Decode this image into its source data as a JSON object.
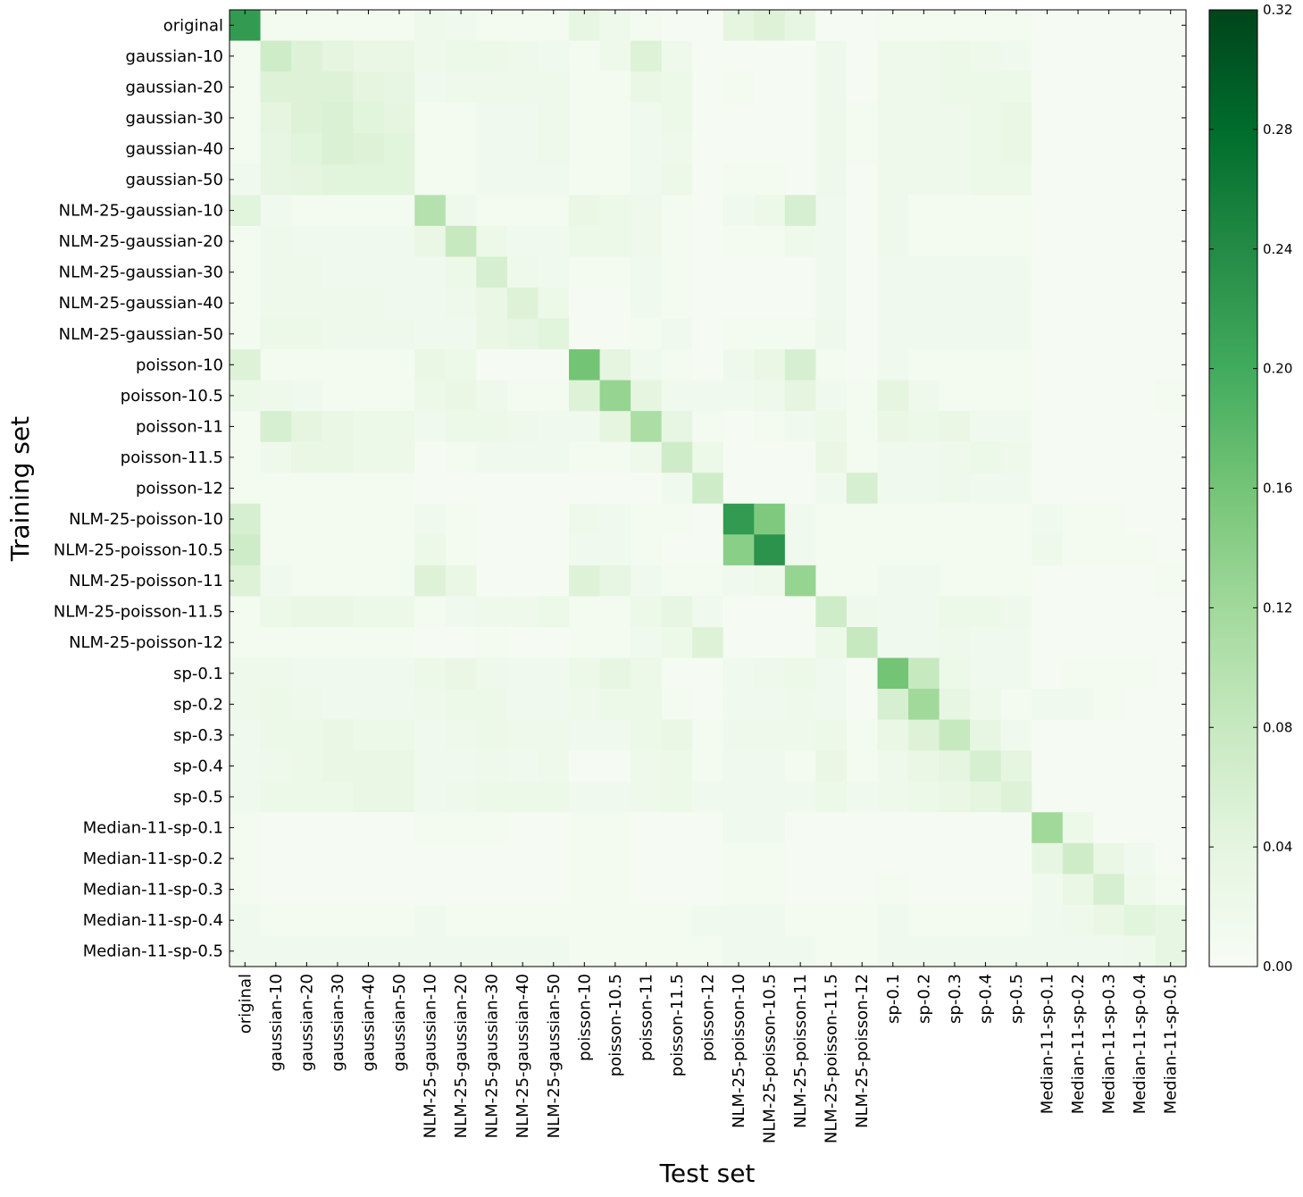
{
  "chart_data": {
    "type": "heatmap",
    "xlabel": "Test set",
    "ylabel": "Training set",
    "labels": [
      "original",
      "gaussian-10",
      "gaussian-20",
      "gaussian-30",
      "gaussian-40",
      "gaussian-50",
      "NLM-25-gaussian-10",
      "NLM-25-gaussian-20",
      "NLM-25-gaussian-30",
      "NLM-25-gaussian-40",
      "NLM-25-gaussian-50",
      "poisson-10",
      "poisson-10.5",
      "poisson-11",
      "poisson-11.5",
      "poisson-12",
      "NLM-25-poisson-10",
      "NLM-25-poisson-10.5",
      "NLM-25-poisson-11",
      "NLM-25-poisson-11.5",
      "NLM-25-poisson-12",
      "sp-0.1",
      "sp-0.2",
      "sp-0.3",
      "sp-0.4",
      "sp-0.5",
      "Median-11-sp-0.1",
      "Median-11-sp-0.2",
      "Median-11-sp-0.3",
      "Median-11-sp-0.4",
      "Median-11-sp-0.5"
    ],
    "colormap": "Greens",
    "colors": [
      "#f7fcf5",
      "#e5f5e0",
      "#c7e9c0",
      "#a1d99b",
      "#74c476",
      "#41ab5d",
      "#238b45",
      "#006d2c",
      "#00441b"
    ],
    "vmin": 0.0,
    "vmax": 0.32,
    "colorbar_ticks": [
      "0.00",
      "0.04",
      "0.08",
      "0.12",
      "0.16",
      "0.20",
      "0.24",
      "0.28",
      "0.32"
    ],
    "matrix": [
      [
        0.22,
        0.01,
        0.01,
        0.01,
        0.01,
        0.01,
        0.02,
        0.015,
        0.01,
        0.01,
        0.01,
        0.035,
        0.02,
        0.01,
        0.005,
        0.005,
        0.04,
        0.05,
        0.035,
        0.005,
        0.005,
        0.01,
        0.01,
        0.01,
        0.01,
        0.01,
        0.005,
        0.005,
        0.005,
        0.005,
        0.005
      ],
      [
        0.01,
        0.07,
        0.05,
        0.04,
        0.03,
        0.03,
        0.02,
        0.025,
        0.025,
        0.02,
        0.015,
        0.01,
        0.02,
        0.05,
        0.02,
        0.005,
        0.005,
        0.005,
        0.005,
        0.02,
        0.005,
        0.02,
        0.02,
        0.025,
        0.02,
        0.015,
        0.005,
        0.005,
        0.005,
        0.005,
        0.005
      ],
      [
        0.01,
        0.05,
        0.05,
        0.05,
        0.04,
        0.035,
        0.015,
        0.02,
        0.02,
        0.02,
        0.02,
        0.01,
        0.01,
        0.03,
        0.025,
        0.005,
        0.01,
        0.005,
        0.005,
        0.02,
        0.005,
        0.02,
        0.02,
        0.025,
        0.025,
        0.025,
        0.005,
        0.005,
        0.005,
        0.005,
        0.005
      ],
      [
        0.01,
        0.04,
        0.05,
        0.055,
        0.045,
        0.04,
        0.01,
        0.01,
        0.015,
        0.015,
        0.02,
        0.01,
        0.01,
        0.015,
        0.025,
        0.005,
        0.005,
        0.005,
        0.005,
        0.02,
        0.01,
        0.02,
        0.02,
        0.02,
        0.025,
        0.03,
        0.005,
        0.005,
        0.005,
        0.005,
        0.005
      ],
      [
        0.01,
        0.035,
        0.045,
        0.055,
        0.05,
        0.045,
        0.01,
        0.01,
        0.015,
        0.015,
        0.02,
        0.01,
        0.01,
        0.015,
        0.02,
        0.005,
        0.005,
        0.005,
        0.005,
        0.02,
        0.01,
        0.02,
        0.02,
        0.02,
        0.025,
        0.03,
        0.005,
        0.005,
        0.005,
        0.005,
        0.005
      ],
      [
        0.015,
        0.035,
        0.04,
        0.045,
        0.045,
        0.045,
        0.01,
        0.01,
        0.015,
        0.015,
        0.015,
        0.01,
        0.01,
        0.015,
        0.025,
        0.005,
        0.01,
        0.01,
        0.005,
        0.02,
        0.005,
        0.02,
        0.02,
        0.02,
        0.025,
        0.025,
        0.005,
        0.005,
        0.005,
        0.005,
        0.005
      ],
      [
        0.045,
        0.015,
        0.01,
        0.01,
        0.01,
        0.01,
        0.1,
        0.02,
        0.01,
        0.01,
        0.01,
        0.03,
        0.025,
        0.02,
        0.01,
        0.005,
        0.015,
        0.025,
        0.06,
        0.015,
        0.005,
        0.02,
        0.01,
        0.01,
        0.01,
        0.01,
        0.005,
        0.005,
        0.005,
        0.005,
        0.005
      ],
      [
        0.01,
        0.02,
        0.015,
        0.015,
        0.015,
        0.015,
        0.03,
        0.08,
        0.025,
        0.015,
        0.015,
        0.025,
        0.025,
        0.02,
        0.01,
        0.005,
        0.01,
        0.01,
        0.02,
        0.015,
        0.005,
        0.02,
        0.01,
        0.01,
        0.01,
        0.01,
        0.005,
        0.005,
        0.005,
        0.005,
        0.005
      ],
      [
        0.01,
        0.02,
        0.02,
        0.015,
        0.015,
        0.015,
        0.015,
        0.025,
        0.06,
        0.02,
        0.015,
        0.01,
        0.01,
        0.015,
        0.01,
        0.005,
        0.005,
        0.005,
        0.005,
        0.015,
        0.005,
        0.015,
        0.015,
        0.015,
        0.015,
        0.015,
        0.005,
        0.005,
        0.005,
        0.005,
        0.005
      ],
      [
        0.01,
        0.02,
        0.02,
        0.02,
        0.02,
        0.015,
        0.015,
        0.02,
        0.03,
        0.05,
        0.025,
        0.005,
        0.005,
        0.015,
        0.01,
        0.005,
        0.005,
        0.005,
        0.005,
        0.015,
        0.005,
        0.015,
        0.015,
        0.015,
        0.015,
        0.015,
        0.005,
        0.005,
        0.005,
        0.005,
        0.005
      ],
      [
        0.01,
        0.025,
        0.025,
        0.02,
        0.02,
        0.02,
        0.015,
        0.015,
        0.03,
        0.035,
        0.045,
        0.005,
        0.005,
        0.01,
        0.015,
        0.005,
        0.01,
        0.01,
        0.01,
        0.02,
        0.005,
        0.015,
        0.015,
        0.015,
        0.015,
        0.015,
        0.005,
        0.005,
        0.005,
        0.005,
        0.005
      ],
      [
        0.05,
        0.01,
        0.01,
        0.01,
        0.01,
        0.01,
        0.03,
        0.025,
        0.005,
        0.005,
        0.005,
        0.16,
        0.04,
        0.015,
        0.01,
        0.005,
        0.02,
        0.03,
        0.06,
        0.01,
        0.005,
        0.015,
        0.01,
        0.01,
        0.01,
        0.01,
        0.005,
        0.005,
        0.005,
        0.005,
        0.005
      ],
      [
        0.025,
        0.02,
        0.015,
        0.01,
        0.01,
        0.01,
        0.025,
        0.03,
        0.02,
        0.01,
        0.01,
        0.05,
        0.13,
        0.04,
        0.015,
        0.015,
        0.015,
        0.02,
        0.04,
        0.015,
        0.01,
        0.04,
        0.02,
        0.01,
        0.01,
        0.01,
        0.005,
        0.005,
        0.005,
        0.005,
        0.01
      ],
      [
        0.01,
        0.06,
        0.04,
        0.03,
        0.025,
        0.025,
        0.015,
        0.025,
        0.025,
        0.02,
        0.015,
        0.015,
        0.04,
        0.11,
        0.035,
        0.01,
        0.005,
        0.01,
        0.015,
        0.025,
        0.01,
        0.03,
        0.025,
        0.03,
        0.015,
        0.015,
        0.005,
        0.005,
        0.005,
        0.005,
        0.005
      ],
      [
        0.01,
        0.02,
        0.03,
        0.03,
        0.025,
        0.025,
        0.005,
        0.01,
        0.015,
        0.015,
        0.015,
        0.01,
        0.01,
        0.02,
        0.07,
        0.025,
        0.005,
        0.005,
        0.005,
        0.03,
        0.01,
        0.015,
        0.015,
        0.02,
        0.025,
        0.02,
        0.005,
        0.005,
        0.005,
        0.005,
        0.005
      ],
      [
        0.01,
        0.01,
        0.01,
        0.01,
        0.01,
        0.01,
        0.005,
        0.005,
        0.005,
        0.005,
        0.005,
        0.005,
        0.005,
        0.005,
        0.015,
        0.07,
        0.005,
        0.005,
        0.005,
        0.015,
        0.06,
        0.015,
        0.015,
        0.02,
        0.015,
        0.015,
        0.005,
        0.005,
        0.005,
        0.005,
        0.005
      ],
      [
        0.06,
        0.01,
        0.01,
        0.01,
        0.01,
        0.01,
        0.015,
        0.01,
        0.005,
        0.005,
        0.005,
        0.02,
        0.015,
        0.01,
        0.01,
        0.005,
        0.22,
        0.15,
        0.015,
        0.01,
        0.01,
        0.01,
        0.01,
        0.01,
        0.01,
        0.01,
        0.015,
        0.01,
        0.01,
        0.005,
        0.005
      ],
      [
        0.07,
        0.01,
        0.01,
        0.01,
        0.01,
        0.01,
        0.025,
        0.01,
        0.005,
        0.005,
        0.005,
        0.015,
        0.015,
        0.01,
        0.005,
        0.005,
        0.14,
        0.23,
        0.015,
        0.01,
        0.01,
        0.01,
        0.01,
        0.01,
        0.01,
        0.01,
        0.02,
        0.01,
        0.01,
        0.01,
        0.005
      ],
      [
        0.05,
        0.015,
        0.01,
        0.01,
        0.01,
        0.01,
        0.05,
        0.03,
        0.005,
        0.005,
        0.005,
        0.05,
        0.035,
        0.015,
        0.01,
        0.01,
        0.015,
        0.02,
        0.13,
        0.01,
        0.01,
        0.015,
        0.015,
        0.01,
        0.01,
        0.01,
        0.005,
        0.005,
        0.005,
        0.005,
        0.01
      ],
      [
        0.01,
        0.025,
        0.03,
        0.03,
        0.025,
        0.025,
        0.01,
        0.015,
        0.02,
        0.02,
        0.025,
        0.01,
        0.01,
        0.025,
        0.035,
        0.015,
        0.005,
        0.005,
        0.005,
        0.07,
        0.02,
        0.015,
        0.015,
        0.025,
        0.025,
        0.02,
        0.005,
        0.005,
        0.005,
        0.005,
        0.005
      ],
      [
        0.01,
        0.01,
        0.01,
        0.01,
        0.01,
        0.01,
        0.005,
        0.005,
        0.01,
        0.005,
        0.005,
        0.01,
        0.01,
        0.015,
        0.025,
        0.05,
        0.005,
        0.005,
        0.005,
        0.025,
        0.08,
        0.015,
        0.015,
        0.02,
        0.015,
        0.015,
        0.005,
        0.005,
        0.005,
        0.005,
        0.005
      ],
      [
        0.02,
        0.02,
        0.015,
        0.015,
        0.015,
        0.015,
        0.025,
        0.03,
        0.02,
        0.015,
        0.015,
        0.025,
        0.035,
        0.025,
        0.005,
        0.005,
        0.015,
        0.02,
        0.025,
        0.015,
        0.005,
        0.16,
        0.08,
        0.025,
        0.015,
        0.015,
        0.005,
        0.01,
        0.01,
        0.01,
        0.005
      ],
      [
        0.02,
        0.025,
        0.02,
        0.015,
        0.015,
        0.015,
        0.02,
        0.025,
        0.025,
        0.015,
        0.015,
        0.02,
        0.025,
        0.025,
        0.01,
        0.005,
        0.015,
        0.015,
        0.02,
        0.015,
        0.005,
        0.06,
        0.12,
        0.035,
        0.02,
        0.01,
        0.015,
        0.015,
        0.01,
        0.005,
        0.005
      ],
      [
        0.015,
        0.025,
        0.025,
        0.03,
        0.025,
        0.025,
        0.015,
        0.02,
        0.025,
        0.02,
        0.02,
        0.015,
        0.015,
        0.025,
        0.03,
        0.01,
        0.02,
        0.02,
        0.02,
        0.025,
        0.01,
        0.03,
        0.05,
        0.08,
        0.035,
        0.015,
        0.005,
        0.005,
        0.005,
        0.005,
        0.005
      ],
      [
        0.015,
        0.02,
        0.025,
        0.03,
        0.03,
        0.03,
        0.015,
        0.015,
        0.02,
        0.015,
        0.02,
        0.005,
        0.005,
        0.02,
        0.025,
        0.01,
        0.015,
        0.015,
        0.01,
        0.03,
        0.01,
        0.02,
        0.03,
        0.04,
        0.06,
        0.04,
        0.005,
        0.005,
        0.005,
        0.005,
        0.005
      ],
      [
        0.015,
        0.025,
        0.025,
        0.025,
        0.03,
        0.03,
        0.015,
        0.02,
        0.025,
        0.025,
        0.025,
        0.015,
        0.015,
        0.02,
        0.025,
        0.015,
        0.015,
        0.015,
        0.015,
        0.025,
        0.015,
        0.02,
        0.025,
        0.03,
        0.04,
        0.05,
        0.005,
        0.005,
        0.005,
        0.005,
        0.005
      ],
      [
        0.01,
        0.005,
        0.005,
        0.005,
        0.005,
        0.005,
        0.01,
        0.01,
        0.01,
        0.005,
        0.005,
        0.01,
        0.01,
        0.005,
        0.005,
        0.005,
        0.015,
        0.015,
        0.005,
        0.005,
        0.005,
        0.005,
        0.005,
        0.005,
        0.005,
        0.005,
        0.12,
        0.025,
        0.005,
        0.005,
        0.005
      ],
      [
        0.01,
        0.005,
        0.005,
        0.005,
        0.005,
        0.005,
        0.005,
        0.005,
        0.005,
        0.005,
        0.005,
        0.01,
        0.01,
        0.005,
        0.005,
        0.005,
        0.01,
        0.01,
        0.005,
        0.005,
        0.005,
        0.005,
        0.005,
        0.005,
        0.005,
        0.005,
        0.035,
        0.07,
        0.03,
        0.015,
        0.005
      ],
      [
        0.01,
        0.005,
        0.005,
        0.005,
        0.005,
        0.005,
        0.005,
        0.005,
        0.005,
        0.005,
        0.005,
        0.01,
        0.01,
        0.005,
        0.005,
        0.005,
        0.01,
        0.01,
        0.005,
        0.005,
        0.005,
        0.01,
        0.005,
        0.005,
        0.005,
        0.005,
        0.015,
        0.03,
        0.06,
        0.02,
        0.01
      ],
      [
        0.015,
        0.01,
        0.01,
        0.01,
        0.01,
        0.01,
        0.015,
        0.01,
        0.01,
        0.01,
        0.01,
        0.01,
        0.01,
        0.01,
        0.01,
        0.015,
        0.015,
        0.015,
        0.01,
        0.01,
        0.01,
        0.015,
        0.01,
        0.01,
        0.01,
        0.01,
        0.015,
        0.02,
        0.03,
        0.045,
        0.035
      ],
      [
        0.015,
        0.015,
        0.015,
        0.015,
        0.015,
        0.015,
        0.015,
        0.015,
        0.015,
        0.015,
        0.015,
        0.01,
        0.01,
        0.01,
        0.01,
        0.01,
        0.015,
        0.015,
        0.015,
        0.01,
        0.01,
        0.015,
        0.015,
        0.015,
        0.015,
        0.015,
        0.015,
        0.015,
        0.015,
        0.02,
        0.035
      ]
    ]
  }
}
